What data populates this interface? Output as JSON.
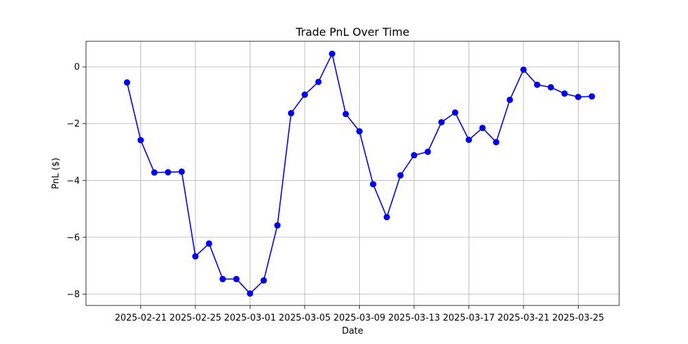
{
  "chart_data": {
    "type": "line",
    "title": "Trade PnL Over Time",
    "xlabel": "Date",
    "ylabel": "PnL ($)",
    "grid": true,
    "line_color": "#0000ff",
    "marker": "circle",
    "ylim": [
      -8.4,
      0.9
    ],
    "xlim": [
      "2025-02-17",
      "2025-03-28"
    ],
    "x_ticks": [
      "2025-02-21",
      "2025-02-25",
      "2025-03-01",
      "2025-03-05",
      "2025-03-09",
      "2025-03-13",
      "2025-03-17",
      "2025-03-21",
      "2025-03-25"
    ],
    "y_ticks": [
      0,
      -2,
      -4,
      -6,
      -8
    ],
    "y_tick_labels": [
      "0",
      "−2",
      "−4",
      "−6",
      "−8"
    ],
    "x": [
      "2025-02-20",
      "2025-02-21",
      "2025-02-22",
      "2025-02-23",
      "2025-02-24",
      "2025-02-25",
      "2025-02-26",
      "2025-02-27",
      "2025-02-28",
      "2025-03-01",
      "2025-03-02",
      "2025-03-03",
      "2025-03-04",
      "2025-03-05",
      "2025-03-06",
      "2025-03-07",
      "2025-03-08",
      "2025-03-09",
      "2025-03-10",
      "2025-03-11",
      "2025-03-12",
      "2025-03-13",
      "2025-03-14",
      "2025-03-15",
      "2025-03-16",
      "2025-03-17",
      "2025-03-18",
      "2025-03-19",
      "2025-03-20",
      "2025-03-21",
      "2025-03-22",
      "2025-03-23",
      "2025-03-24",
      "2025-03-25",
      "2025-03-26"
    ],
    "series": [
      {
        "values": [
          -0.55,
          -2.58,
          -3.72,
          -3.71,
          -3.69,
          -6.67,
          -6.22,
          -7.47,
          -7.47,
          -7.98,
          -7.52,
          -5.58,
          -1.63,
          -0.98,
          -0.53,
          0.46,
          -1.66,
          -2.27,
          -4.13,
          -5.29,
          -3.82,
          -3.11,
          -2.99,
          -1.95,
          -1.61,
          -2.57,
          -2.15,
          -2.65,
          -1.16,
          -0.1,
          -0.63,
          -0.72,
          -0.94,
          -1.06,
          -1.04
        ]
      }
    ]
  }
}
